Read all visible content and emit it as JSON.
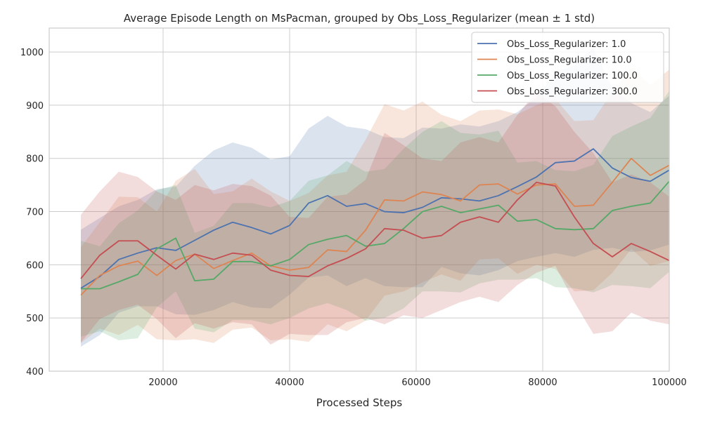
{
  "chart_data": {
    "type": "line",
    "title": "Average Episode Length on MsPacman, grouped by Obs_Loss_Regularizer (mean ± 1 std)",
    "xlabel": "Processed Steps",
    "ylabel": "",
    "xlim": [
      2000,
      100000
    ],
    "ylim": [
      400,
      1045
    ],
    "xticks": [
      20000,
      40000,
      60000,
      80000,
      100000
    ],
    "yticks": [
      400,
      500,
      600,
      700,
      800,
      900,
      1000
    ],
    "grid": true,
    "legend": "top-right",
    "x": [
      7000,
      10000,
      13000,
      16000,
      19000,
      22000,
      25000,
      28000,
      31000,
      34000,
      37000,
      40000,
      43000,
      46000,
      49000,
      52000,
      55000,
      58000,
      61000,
      64000,
      67000,
      70000,
      73000,
      76000,
      79000,
      82000,
      85000,
      88000,
      91000,
      94000,
      97000,
      100000
    ],
    "series": [
      {
        "name": "Obs_Loss_Regularizer: 1.0",
        "color": "#4c72b0",
        "values": [
          556,
          578,
          610,
          622,
          632,
          627,
          646,
          665,
          680,
          670,
          658,
          674,
          716,
          730,
          710,
          715,
          700,
          698,
          708,
          726,
          724,
          720,
          730,
          747,
          765,
          792,
          795,
          818,
          782,
          764,
          757,
          778
        ],
        "std": [
          110,
          110,
          100,
          100,
          110,
          120,
          140,
          150,
          150,
          150,
          140,
          130,
          140,
          150,
          150,
          140,
          140,
          140,
          150,
          130,
          140,
          140,
          140,
          140,
          150,
          170,
          180,
          190,
          150,
          140,
          130,
          140
        ]
      },
      {
        "name": "Obs_Loss_Regularizer: 10.0",
        "color": "#dd8452",
        "values": [
          543,
          580,
          598,
          607,
          580,
          608,
          620,
          593,
          608,
          622,
          598,
          590,
          595,
          628,
          625,
          665,
          722,
          720,
          737,
          732,
          720,
          750,
          752,
          733,
          750,
          752,
          710,
          712,
          755,
          800,
          768,
          787
        ],
        "std": [
          90,
          100,
          130,
          120,
          120,
          150,
          160,
          140,
          130,
          140,
          140,
          130,
          140,
          140,
          150,
          170,
          180,
          170,
          170,
          150,
          150,
          140,
          140,
          150,
          150,
          160,
          160,
          160,
          170,
          170,
          170,
          180
        ]
      },
      {
        "name": "Obs_Loss_Regularizer: 100.0",
        "color": "#55a868",
        "values": [
          555,
          555,
          568,
          582,
          630,
          650,
          570,
          573,
          606,
          606,
          598,
          610,
          638,
          648,
          655,
          635,
          640,
          668,
          700,
          710,
          698,
          705,
          712,
          682,
          685,
          668,
          666,
          668,
          702,
          710,
          716,
          757
        ],
        "std": [
          90,
          80,
          110,
          120,
          110,
          100,
          90,
          100,
          110,
          110,
          110,
          110,
          120,
          120,
          140,
          140,
          140,
          150,
          150,
          160,
          150,
          140,
          140,
          110,
          110,
          110,
          110,
          120,
          140,
          150,
          160,
          170
        ]
      },
      {
        "name": "Obs_Loss_Regularizer: 300.0",
        "color": "#c44e52",
        "values": [
          574,
          618,
          645,
          645,
          618,
          592,
          620,
          610,
          622,
          618,
          590,
          580,
          578,
          598,
          612,
          630,
          668,
          665,
          650,
          655,
          680,
          690,
          680,
          722,
          755,
          748,
          690,
          640,
          615,
          640,
          625,
          608
        ],
        "std": [
          120,
          120,
          130,
          120,
          120,
          130,
          130,
          130,
          130,
          130,
          140,
          110,
          110,
          130,
          120,
          130,
          180,
          160,
          150,
          140,
          150,
          150,
          150,
          160,
          170,
          150,
          160,
          170,
          140,
          130,
          130,
          120
        ]
      }
    ]
  }
}
